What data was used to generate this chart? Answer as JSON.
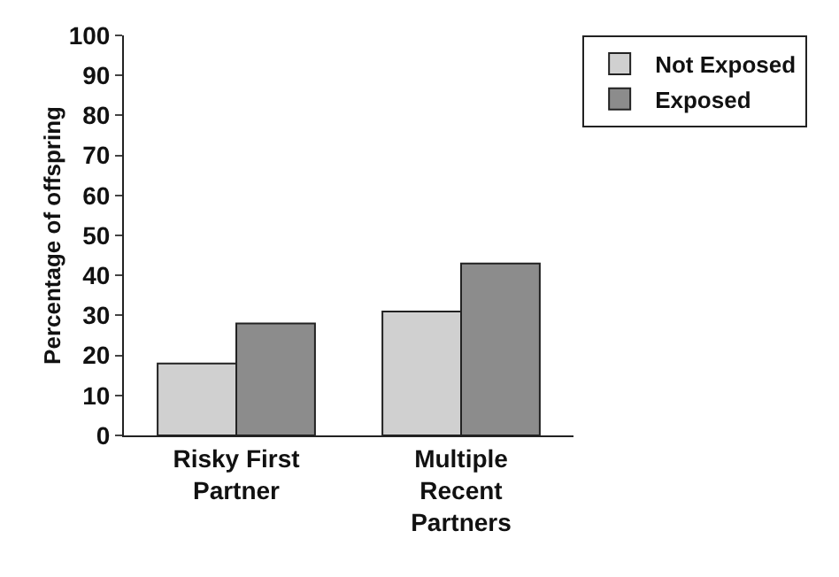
{
  "chart_data": {
    "type": "bar",
    "ylabel": "Percentage of offspring",
    "categories": [
      "Risky First Partner",
      "Multiple Recent Partners"
    ],
    "series": [
      {
        "name": "Not Exposed",
        "color": "#d0d0d0",
        "values": [
          18,
          31
        ]
      },
      {
        "name": "Exposed",
        "color": "#8c8c8c",
        "values": [
          28,
          43
        ]
      }
    ],
    "ylim": [
      0,
      100
    ],
    "yticks": [
      0,
      10,
      20,
      30,
      40,
      50,
      60,
      70,
      80,
      90,
      100
    ],
    "grid": false,
    "legend": "top right"
  }
}
